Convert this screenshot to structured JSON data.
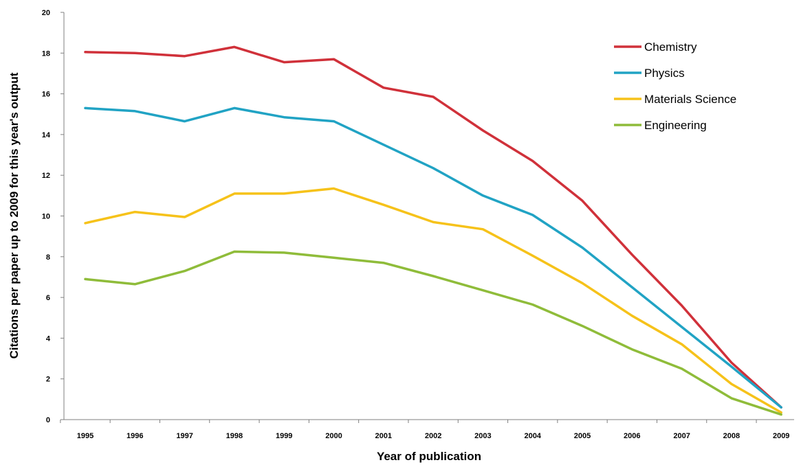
{
  "chart_data": {
    "type": "line",
    "title": "",
    "xlabel": "Year of publication",
    "ylabel": "Citations per paper up to 2009 for this year's output",
    "categories": [
      "1995",
      "1996",
      "1997",
      "1998",
      "1999",
      "2000",
      "2001",
      "2002",
      "2003",
      "2004",
      "2005",
      "2006",
      "2007",
      "2008",
      "2009"
    ],
    "ylim": [
      0,
      20
    ],
    "yticks": [
      0,
      2,
      4,
      6,
      8,
      10,
      12,
      14,
      16,
      18,
      20
    ],
    "grid": false,
    "legend_position": "top-right",
    "series": [
      {
        "name": "Chemistry",
        "color": "#d0313a",
        "values": [
          18.05,
          18.0,
          17.85,
          18.3,
          17.55,
          17.7,
          16.3,
          15.85,
          14.2,
          12.7,
          10.75,
          8.1,
          5.6,
          2.8,
          0.6
        ]
      },
      {
        "name": "Physics",
        "color": "#21a3c4",
        "values": [
          15.3,
          15.15,
          14.65,
          15.3,
          14.85,
          14.65,
          13.5,
          12.35,
          11.0,
          10.05,
          8.45,
          6.5,
          4.55,
          2.6,
          0.6
        ]
      },
      {
        "name": "Materials Science",
        "color": "#f6c21a",
        "values": [
          9.65,
          10.2,
          9.95,
          11.1,
          11.1,
          11.35,
          10.55,
          9.7,
          9.35,
          8.05,
          6.7,
          5.1,
          3.7,
          1.75,
          0.35
        ]
      },
      {
        "name": "Engineering",
        "color": "#8fbc3a",
        "values": [
          6.9,
          6.65,
          7.3,
          8.25,
          8.2,
          7.95,
          7.7,
          7.05,
          6.35,
          5.65,
          4.6,
          3.45,
          2.5,
          1.05,
          0.25
        ]
      }
    ]
  }
}
